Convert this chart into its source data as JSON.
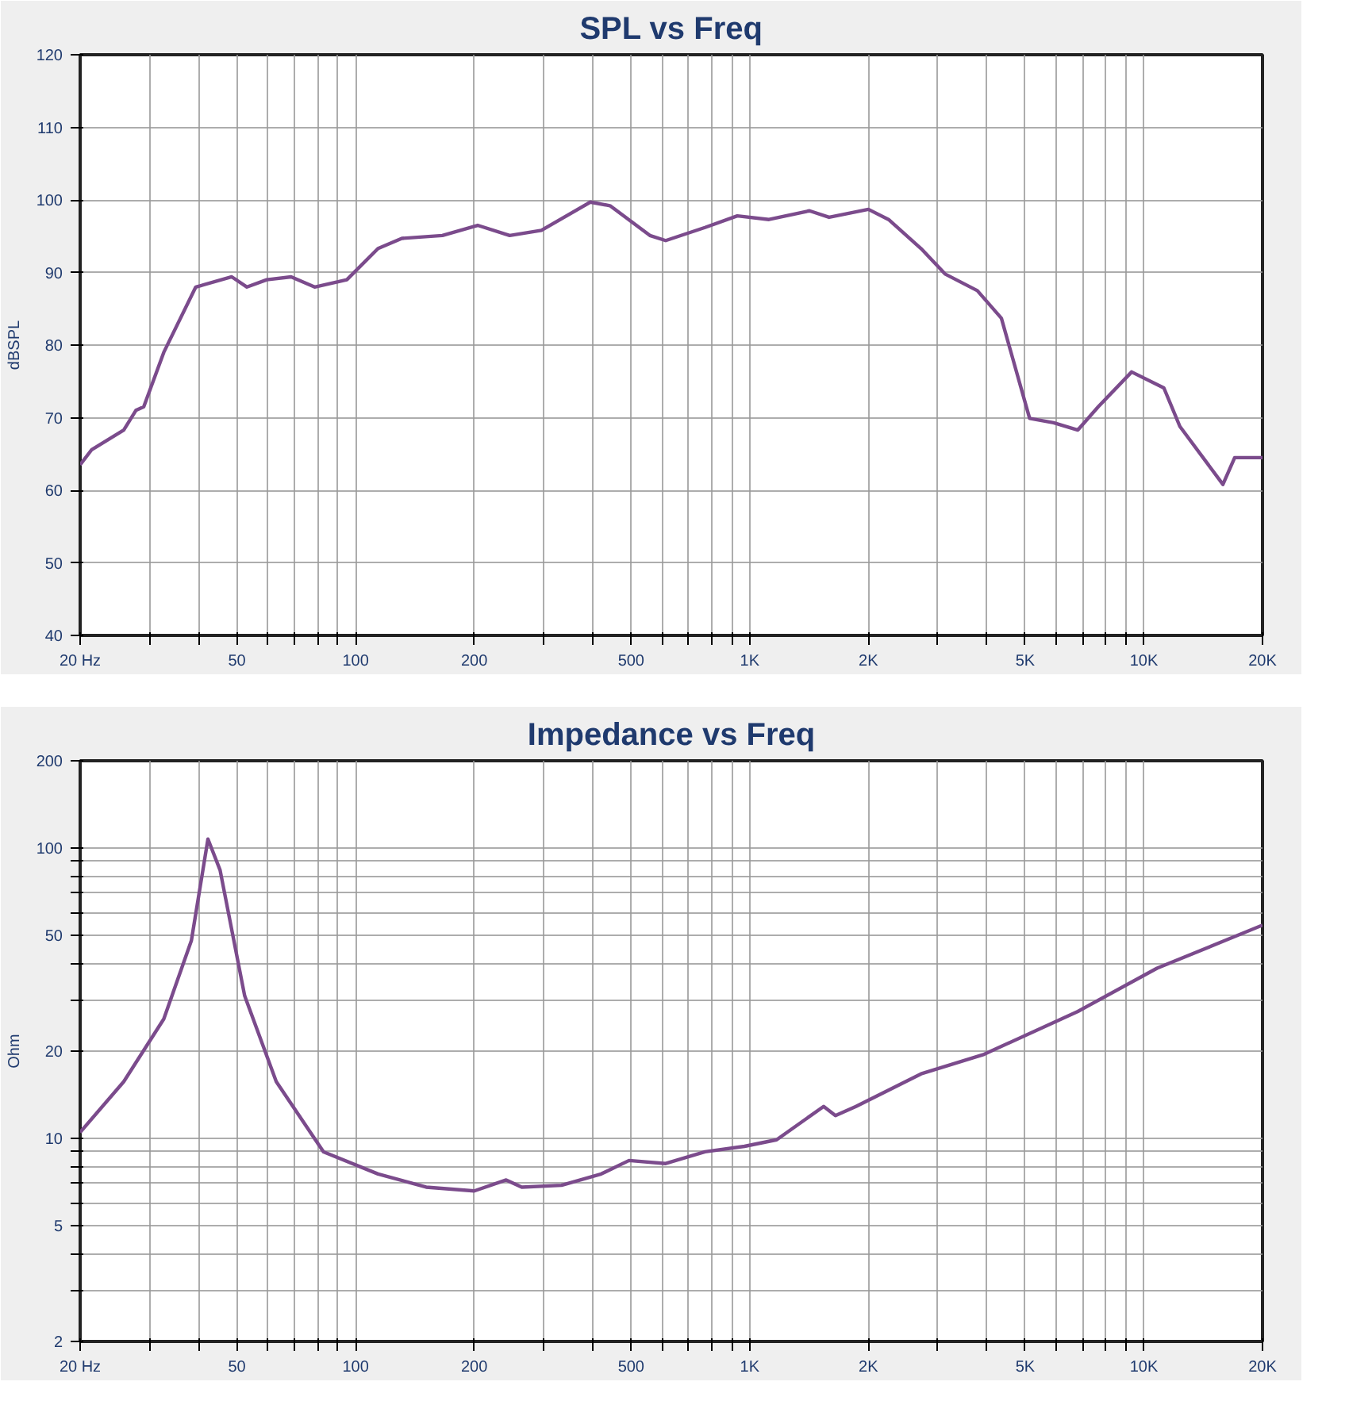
{
  "chart_data": [
    {
      "type": "line",
      "title": "SPL vs Freq",
      "ylabel": "dBSPL",
      "log": "x",
      "grid": true,
      "line_style": "solid",
      "marker": "none",
      "xlim": [
        20,
        20000
      ],
      "ylim": [
        40,
        120
      ],
      "xticks": [
        {
          "value": 20,
          "label": "20 Hz"
        },
        {
          "value": 30,
          "label": null
        },
        {
          "value": 40,
          "label": null
        },
        50,
        {
          "value": 60,
          "label": null
        },
        {
          "value": 70,
          "label": null
        },
        {
          "value": 80,
          "label": null
        },
        {
          "value": 90,
          "label": null
        },
        100,
        200,
        {
          "value": 300,
          "label": null
        },
        {
          "value": 400,
          "label": null
        },
        500,
        {
          "value": 600,
          "label": null
        },
        {
          "value": 700,
          "label": null
        },
        {
          "value": 800,
          "label": null
        },
        {
          "value": 900,
          "label": null
        },
        {
          "value": 1000,
          "label": "1K"
        },
        {
          "value": 2000,
          "label": "2K"
        },
        {
          "value": 3000,
          "label": null
        },
        {
          "value": 4000,
          "label": null
        },
        {
          "value": 5000,
          "label": "5K"
        },
        {
          "value": 6000,
          "label": null
        },
        {
          "value": 7000,
          "label": null
        },
        {
          "value": 8000,
          "label": null
        },
        {
          "value": 9000,
          "label": null
        },
        {
          "value": 10000,
          "label": "10K"
        },
        {
          "value": 20000,
          "label": "20K"
        }
      ],
      "yticks": [
        40,
        50,
        60,
        70,
        80,
        90,
        100,
        110,
        120
      ],
      "series": [
        {
          "color": "#7b4b8c",
          "x": [
            20,
            21.4,
            25.8,
            27.7,
            29,
            32.6,
            39.3,
            48.5,
            53,
            59.5,
            68.6,
            78.7,
            95,
            114,
            131,
            166,
            204,
            246,
            296,
            394,
            442,
            558,
            612,
            770,
            930,
            1119,
            1418,
            1590,
            2000,
            2250,
            2720,
            3130,
            3780,
            4350,
            5130,
            5900,
            6800,
            7660,
            9310,
            11240,
            12340,
            15870,
            17000,
            20000
          ],
          "values": [
            63.5,
            65.6,
            68.3,
            71,
            71.5,
            79,
            88,
            89.4,
            88,
            89,
            89.4,
            88,
            89,
            93.3,
            94.7,
            95.1,
            96.5,
            95.1,
            95.8,
            99.7,
            99.2,
            95.1,
            94.4,
            96.2,
            97.8,
            97.3,
            98.5,
            97.6,
            98.7,
            97.3,
            93.3,
            89.8,
            87.5,
            83.7,
            69.9,
            69.3,
            68.3,
            71.5,
            76.3,
            74.1,
            68.8,
            60.8,
            64.5,
            64.5
          ]
        }
      ]
    },
    {
      "type": "line",
      "title": "Impedance vs Freq",
      "ylabel": "Ohm",
      "log": "xy",
      "grid": true,
      "line_style": "solid",
      "marker": "none",
      "xlim": [
        20,
        20000
      ],
      "ylim": [
        2,
        200
      ],
      "xticks": [
        {
          "value": 20,
          "label": "20 Hz"
        },
        {
          "value": 30,
          "label": null
        },
        {
          "value": 40,
          "label": null
        },
        50,
        {
          "value": 60,
          "label": null
        },
        {
          "value": 70,
          "label": null
        },
        {
          "value": 80,
          "label": null
        },
        {
          "value": 90,
          "label": null
        },
        100,
        200,
        {
          "value": 300,
          "label": null
        },
        {
          "value": 400,
          "label": null
        },
        500,
        {
          "value": 600,
          "label": null
        },
        {
          "value": 700,
          "label": null
        },
        {
          "value": 800,
          "label": null
        },
        {
          "value": 900,
          "label": null
        },
        {
          "value": 1000,
          "label": "1K"
        },
        {
          "value": 2000,
          "label": "2K"
        },
        {
          "value": 3000,
          "label": null
        },
        {
          "value": 4000,
          "label": null
        },
        {
          "value": 5000,
          "label": "5K"
        },
        {
          "value": 6000,
          "label": null
        },
        {
          "value": 7000,
          "label": null
        },
        {
          "value": 8000,
          "label": null
        },
        {
          "value": 9000,
          "label": null
        },
        {
          "value": 10000,
          "label": "10K"
        },
        {
          "value": 20000,
          "label": "20K"
        }
      ],
      "yticks": [
        2,
        {
          "value": 3,
          "label": null
        },
        {
          "value": 4,
          "label": null
        },
        5,
        {
          "value": 6,
          "label": null
        },
        {
          "value": 7,
          "label": null
        },
        {
          "value": 8,
          "label": null
        },
        {
          "value": 9,
          "label": null
        },
        10,
        20,
        {
          "value": 30,
          "label": null
        },
        {
          "value": 40,
          "label": null
        },
        50,
        {
          "value": 60,
          "label": null
        },
        {
          "value": 70,
          "label": null
        },
        {
          "value": 80,
          "label": null
        },
        {
          "value": 90,
          "label": null
        },
        100,
        200
      ],
      "series": [
        {
          "color": "#7b4b8c",
          "x": [
            20,
            25.8,
            32.6,
            38.3,
            42.2,
            45.3,
            52.3,
            62.9,
            82.9,
            114,
            151,
            200,
            241,
            264,
            333,
            420,
            494,
            612,
            770,
            970,
            1170,
            1540,
            1650,
            1860,
            2720,
            3930,
            6800,
            10800,
            20000
          ],
          "values": [
            10.5,
            15.7,
            25.8,
            48,
            107.5,
            84,
            31,
            15.7,
            9.0,
            7.55,
            6.8,
            6.6,
            7.2,
            6.8,
            6.9,
            7.55,
            8.4,
            8.2,
            9.0,
            9.4,
            9.9,
            12.9,
            12.0,
            12.9,
            16.7,
            19.5,
            27.4,
            38.6,
            54.3
          ]
        }
      ]
    }
  ]
}
